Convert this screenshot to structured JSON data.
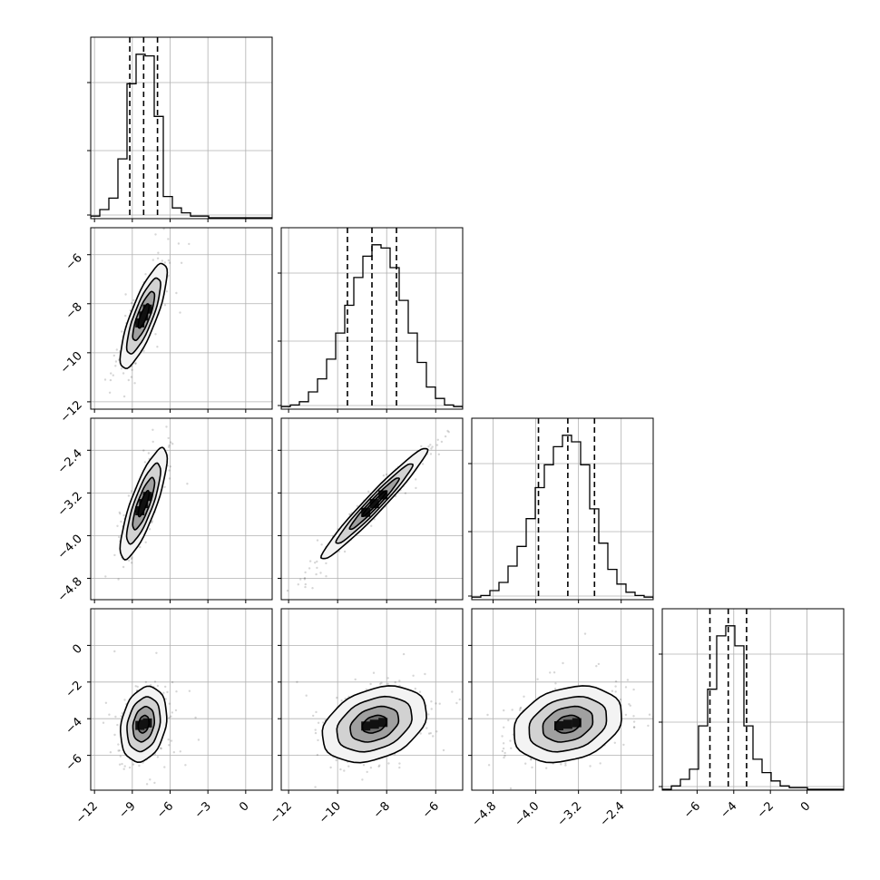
{
  "chart_data": {
    "type": "corner",
    "parameters": [
      {
        "range": [
          -12.3,
          2.1
        ],
        "ticks": [
          -12,
          -9,
          -6,
          -3,
          0
        ],
        "tick_labels": [
          "−12",
          "−9",
          "−6",
          "−3",
          "0"
        ],
        "quantiles": [
          -9.2,
          -8.1,
          -7.0
        ],
        "mode": -8.1,
        "sigma": 0.85
      },
      {
        "range": [
          -12.3,
          -4.9
        ],
        "ticks": [
          -12,
          -10,
          -8,
          -6
        ],
        "tick_labels": [
          "−12",
          "−10",
          "−8",
          "−6"
        ],
        "quantiles": [
          -9.6,
          -8.6,
          -7.6
        ],
        "mode": -8.5,
        "sigma": 1.0
      },
      {
        "range": [
          -5.2,
          -1.8
        ],
        "ticks": [
          -4.8,
          -4.0,
          -3.2,
          -2.4
        ],
        "tick_labels": [
          "−4.8",
          "−4.0",
          "−3.2",
          "−2.4"
        ],
        "quantiles": [
          -3.95,
          -3.4,
          -2.9
        ],
        "mode": -3.4,
        "sigma": 0.48
      },
      {
        "range": [
          -7.9,
          2.0
        ],
        "ticks": [
          -6,
          -4,
          -2,
          0
        ],
        "tick_labels": [
          "−6",
          "−4",
          "−2",
          "0"
        ],
        "quantiles": [
          -5.3,
          -4.3,
          -3.3
        ],
        "mode": -4.3,
        "sigma": 0.95
      }
    ],
    "correlations": [
      [
        1,
        0.8,
        0.8,
        0.2
      ],
      [
        0.8,
        1,
        0.97,
        0.3
      ],
      [
        0.8,
        0.97,
        1,
        0.25
      ],
      [
        0.2,
        0.3,
        0.25,
        1
      ]
    ],
    "histograms": [
      {
        "edges": [
          -12.3,
          -11.58,
          -10.86,
          -10.14,
          -9.42,
          -8.7,
          -7.98,
          -7.26,
          -6.54,
          -5.82,
          -5.1,
          -4.38,
          -3.66,
          -2.94,
          -2.22,
          -1.5,
          -0.78,
          -0.06,
          0.66,
          1.38,
          2.1
        ],
        "counts": [
          0.01,
          0.05,
          0.12,
          0.36,
          0.82,
          1.0,
          0.99,
          0.62,
          0.13,
          0.06,
          0.03,
          0.01,
          0.01,
          0.0,
          0.0,
          0.0,
          0.0,
          0.0,
          0.0,
          0.0
        ]
      },
      {
        "edges": [
          -12.3,
          -11.93,
          -11.56,
          -11.19,
          -10.82,
          -10.45,
          -10.08,
          -9.71,
          -9.34,
          -8.97,
          -8.6,
          -8.23,
          -7.86,
          -7.49,
          -7.12,
          -6.75,
          -6.38,
          -6.01,
          -5.64,
          -5.27,
          -4.9
        ],
        "counts": [
          0.01,
          0.02,
          0.04,
          0.1,
          0.18,
          0.3,
          0.46,
          0.63,
          0.8,
          0.93,
          1.0,
          0.98,
          0.86,
          0.66,
          0.46,
          0.28,
          0.13,
          0.06,
          0.02,
          0.01
        ]
      },
      {
        "edges": [
          -5.2,
          -5.03,
          -4.86,
          -4.69,
          -4.52,
          -4.35,
          -4.18,
          -4.01,
          -3.84,
          -3.67,
          -3.5,
          -3.33,
          -3.16,
          -2.99,
          -2.82,
          -2.65,
          -2.48,
          -2.31,
          -2.14,
          -1.97,
          -1.8
        ],
        "counts": [
          0.01,
          0.02,
          0.05,
          0.1,
          0.2,
          0.32,
          0.49,
          0.68,
          0.82,
          0.93,
          1.0,
          0.96,
          0.82,
          0.55,
          0.34,
          0.18,
          0.09,
          0.04,
          0.02,
          0.01
        ]
      },
      {
        "edges": [
          -7.9,
          -7.405,
          -6.91,
          -6.415,
          -5.92,
          -5.425,
          -4.93,
          -4.435,
          -3.94,
          -3.445,
          -2.95,
          -2.455,
          -1.96,
          -1.465,
          -0.97,
          -0.475,
          0.02,
          0.515,
          1.01,
          1.505,
          2.0
        ],
        "counts": [
          0.0,
          0.02,
          0.06,
          0.12,
          0.38,
          0.6,
          0.92,
          0.98,
          0.86,
          0.38,
          0.18,
          0.1,
          0.05,
          0.02,
          0.01,
          0.01,
          0.0,
          0.0,
          0.0,
          0.0
        ]
      }
    ],
    "xlabel": "",
    "ylabel": "",
    "title": ""
  }
}
